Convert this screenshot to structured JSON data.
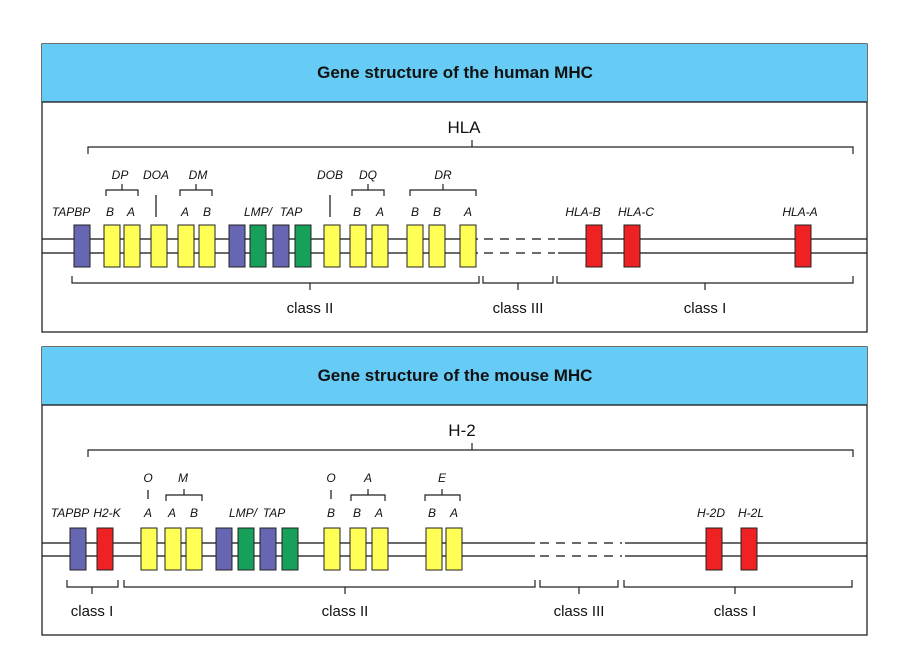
{
  "colors": {
    "header_bg": "#66ccf5",
    "tap_purple": "#6666b3",
    "class_ii_yellow": "#ffff55",
    "lmp_green": "#16a05a",
    "class_i_red": "#ee2222",
    "border": "#222222"
  },
  "human": {
    "title": "Gene structure of the human MHC",
    "complex_label": "HLA",
    "group_labels": {
      "dp": "DP",
      "doa": "DOA",
      "dm": "DM",
      "dob": "DOB",
      "dq": "DQ",
      "dr": "DR"
    },
    "gene_labels": {
      "tapbp": "TAPBP",
      "dp_b": "B",
      "dp_a": "A",
      "dm_a": "A",
      "dm_b": "B",
      "lmp": "LMP/",
      "tap": "TAP",
      "dq_b": "B",
      "dq_a": "A",
      "dr_b1": "B",
      "dr_b2": "B",
      "dr_a": "A",
      "hla_b": "HLA-B",
      "hla_c": "HLA-C",
      "hla_a": "HLA-A"
    },
    "class_labels": {
      "class_ii": "class II",
      "class_iii": "class III",
      "class_i": "class I"
    }
  },
  "mouse": {
    "title": "Gene structure of the mouse MHC",
    "complex_label": "H-2",
    "group_labels": {
      "o1": "O",
      "m": "M",
      "o2": "O",
      "a": "A",
      "e": "E"
    },
    "gene_labels": {
      "tapbp": "TAPBP",
      "h2k": "H2-K",
      "oa": "A",
      "ma": "A",
      "mb": "B",
      "lmp": "LMP/",
      "tap": "TAP",
      "ob": "B",
      "ab": "B",
      "aa": "A",
      "eb": "B",
      "ea": "A",
      "h2d": "H-2D",
      "h2l": "H-2L"
    },
    "class_labels": {
      "class_i_left": "class I",
      "class_ii": "class II",
      "class_iii": "class III",
      "class_i_right": "class I"
    }
  }
}
